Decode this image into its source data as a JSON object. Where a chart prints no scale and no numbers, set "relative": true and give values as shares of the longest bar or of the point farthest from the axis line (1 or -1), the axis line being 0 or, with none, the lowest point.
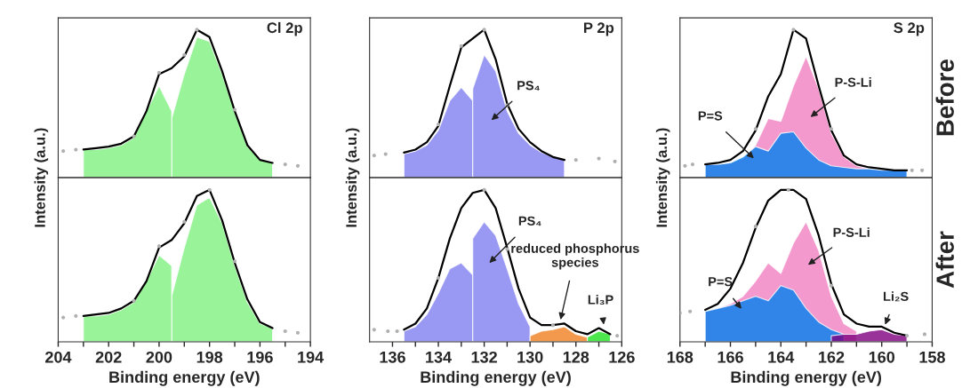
{
  "chart_data": [
    {
      "type": "area",
      "title": "Cl 2p",
      "relative": true,
      "tick_labels": false,
      "xlim": [
        204,
        194
      ],
      "series": [
        {
          "color": "#80f080",
          "x": [
            199.5,
            199,
            198.5,
            198,
            197.5,
            197,
            196.5,
            196,
            195.5
          ],
          "values": [
            0.4,
            0.7,
            0.95,
            0.92,
            0.7,
            0.44,
            0.21,
            0.12,
            0.1
          ]
        },
        {
          "color": "#80f080",
          "x": [
            203,
            202.5,
            202,
            201.5,
            201,
            200.5,
            200,
            199.5
          ],
          "values": [
            0.19,
            0.19,
            0.2,
            0.22,
            0.27,
            0.45,
            0.62,
            0.45
          ]
        },
        {
          "type": "line",
          "color": "#000000",
          "x": [
            203,
            202.5,
            202,
            201.5,
            201,
            200.5,
            200,
            199.5,
            199,
            198.5,
            198,
            197.5,
            197,
            196.5,
            196,
            195.5
          ],
          "values": [
            0.19,
            0.2,
            0.21,
            0.23,
            0.28,
            0.45,
            0.7,
            0.74,
            0.82,
            1.0,
            0.95,
            0.72,
            0.45,
            0.22,
            0.12,
            0.1
          ]
        },
        {
          "type": "scatter",
          "color": "#b0b0b0",
          "x": [
            203.8,
            203.3,
            201,
            200,
            199,
            198.5,
            197,
            195,
            194.5
          ],
          "values": [
            0.18,
            0.19,
            0.28,
            0.71,
            0.83,
            1.0,
            0.46,
            0.09,
            0.08
          ]
        }
      ]
    },
    {
      "type": "area",
      "title": "P 2p",
      "relative": true,
      "tick_labels": false,
      "xlim": [
        137,
        126
      ],
      "series": [
        {
          "color": "#8080f0",
          "x": [
            135.5,
            135,
            134.5,
            134,
            133.5,
            133,
            132.5
          ],
          "values": [
            0.16,
            0.18,
            0.22,
            0.32,
            0.52,
            0.61,
            0.52
          ]
        },
        {
          "color": "#8080f0",
          "x": [
            132.5,
            132,
            131.5,
            131,
            130.5,
            130,
            129.5,
            129,
            128.5
          ],
          "values": [
            0.6,
            0.83,
            0.72,
            0.45,
            0.3,
            0.22,
            0.17,
            0.14,
            0.12
          ]
        },
        {
          "type": "line",
          "color": "#000000",
          "x": [
            135.5,
            135,
            134.5,
            134,
            133.5,
            133,
            132.5,
            132,
            131.5,
            131,
            130.5,
            130,
            129.5,
            129,
            128.5
          ],
          "values": [
            0.17,
            0.19,
            0.24,
            0.35,
            0.62,
            0.88,
            0.94,
            1.0,
            0.8,
            0.5,
            0.33,
            0.24,
            0.18,
            0.14,
            0.12
          ]
        },
        {
          "type": "scatter",
          "color": "#b0b0b0",
          "x": [
            136.8,
            136.3,
            134,
            133,
            132,
            131,
            128,
            127,
            126.3
          ],
          "values": [
            0.15,
            0.16,
            0.36,
            0.89,
            1.0,
            0.49,
            0.12,
            0.13,
            0.11
          ]
        }
      ],
      "annotations": [
        "PS₄"
      ]
    },
    {
      "type": "area",
      "title": "S 2p",
      "relative": true,
      "tick_labels": false,
      "xlim": [
        168,
        158
      ],
      "series": [
        {
          "color": "#f080c0",
          "x": [
            167,
            166.5,
            166,
            165.5,
            165,
            164.5,
            164,
            163.5,
            163,
            162.5,
            162,
            161.5,
            161,
            160.5,
            160,
            159.5,
            159
          ],
          "values": [
            0.09,
            0.09,
            0.1,
            0.13,
            0.22,
            0.4,
            0.38,
            0.62,
            0.82,
            0.6,
            0.3,
            0.14,
            0.08,
            0.06,
            0.05,
            0.05,
            0.05
          ]
        },
        {
          "color": "#0080f0",
          "x": [
            167,
            166.5,
            166,
            165.5,
            165,
            164.5,
            164,
            163.5,
            163,
            162.5,
            162,
            161.5,
            161,
            160.5,
            160,
            159.5,
            159
          ],
          "values": [
            0.09,
            0.09,
            0.1,
            0.14,
            0.21,
            0.18,
            0.3,
            0.31,
            0.2,
            0.12,
            0.08,
            0.07,
            0.06,
            0.06,
            0.05,
            0.05,
            0.05
          ]
        },
        {
          "type": "line",
          "color": "#000000",
          "x": [
            167,
            166.5,
            166,
            165.5,
            165,
            164.5,
            164,
            163.5,
            163,
            162.5,
            162,
            161.5,
            161,
            160.5,
            160,
            159.5,
            159
          ],
          "values": [
            0.09,
            0.1,
            0.12,
            0.18,
            0.32,
            0.55,
            0.7,
            1.0,
            0.94,
            0.62,
            0.32,
            0.15,
            0.09,
            0.07,
            0.06,
            0.05,
            0.05
          ]
        },
        {
          "type": "scatter",
          "color": "#b0b0b0",
          "x": [
            167.8,
            167.5,
            165,
            163.5,
            162,
            158.8,
            158.4
          ],
          "values": [
            0.08,
            0.09,
            0.33,
            1.0,
            0.33,
            0.05,
            0.05
          ]
        }
      ],
      "annotations": [
        "P-S-Li",
        "P=S",
        "Before"
      ]
    },
    {
      "type": "area",
      "ylabel": "Intensity (a.u.)",
      "xlabel": "Binding energy (eV)",
      "relative": true,
      "tick_labels": "x",
      "xlim": [
        204,
        194
      ],
      "xticks": [
        204,
        {
          "value": 203,
          "label": null
        },
        202,
        {
          "value": 201,
          "label": null
        },
        200,
        {
          "value": 199,
          "label": null
        },
        198,
        {
          "value": 197,
          "label": null
        },
        196,
        {
          "value": 195,
          "label": null
        },
        194
      ],
      "series": [
        {
          "color": "#80f080",
          "x": [
            199.5,
            199,
            198.5,
            198,
            197.5,
            197,
            196.5,
            196,
            195.5
          ],
          "values": [
            0.3,
            0.62,
            0.9,
            0.95,
            0.78,
            0.5,
            0.26,
            0.12,
            0.09
          ]
        },
        {
          "color": "#80f080",
          "x": [
            203,
            202.5,
            202,
            201.5,
            201,
            200.5,
            200,
            199.5
          ],
          "values": [
            0.17,
            0.17,
            0.18,
            0.21,
            0.26,
            0.4,
            0.57,
            0.5
          ]
        },
        {
          "type": "line",
          "color": "#000000",
          "x": [
            203,
            202.5,
            202,
            201.5,
            201,
            200.5,
            200,
            199.5,
            199,
            198.5,
            198,
            197.5,
            197,
            196.5,
            196,
            195.5
          ],
          "values": [
            0.17,
            0.18,
            0.19,
            0.22,
            0.27,
            0.4,
            0.62,
            0.67,
            0.78,
            0.96,
            1.0,
            0.8,
            0.52,
            0.28,
            0.13,
            0.09
          ]
        },
        {
          "type": "scatter",
          "color": "#b0b0b0",
          "x": [
            203.8,
            203.3,
            201,
            200,
            199,
            198,
            197,
            195,
            194.5
          ],
          "values": [
            0.16,
            0.17,
            0.27,
            0.63,
            0.79,
            1.0,
            0.53,
            0.07,
            0.06
          ]
        }
      ]
    },
    {
      "type": "area",
      "ylabel": "Intensity (a.u.)",
      "xlabel": "Binding energy (eV)",
      "relative": true,
      "tick_labels": "x",
      "xlim": [
        137,
        126
      ],
      "xticks": [
        136,
        {
          "value": 135,
          "label": null
        },
        134,
        {
          "value": 133,
          "label": null
        },
        132,
        {
          "value": 131,
          "label": null
        },
        130,
        {
          "value": 129,
          "label": null
        },
        128,
        {
          "value": 127,
          "label": null
        },
        126
      ],
      "series": [
        {
          "color": "#8080f0",
          "x": [
            135.5,
            135,
            134.5,
            134,
            133.5,
            133,
            132.5
          ],
          "values": [
            0.07,
            0.1,
            0.18,
            0.32,
            0.48,
            0.52,
            0.44
          ]
        },
        {
          "color": "#8080f0",
          "x": [
            132.5,
            132,
            131.5,
            131,
            130.5,
            130
          ],
          "values": [
            0.68,
            0.79,
            0.7,
            0.48,
            0.25,
            0.1
          ]
        },
        {
          "color": "#f08020",
          "x": [
            130,
            129.5,
            129,
            128.5,
            128,
            127.5
          ],
          "values": [
            0.04,
            0.07,
            0.08,
            0.1,
            0.05,
            0.03
          ]
        },
        {
          "color": "#20e020",
          "x": [
            127.5,
            127,
            126.5
          ],
          "values": [
            0.03,
            0.07,
            0.05
          ]
        },
        {
          "type": "line",
          "color": "#000000",
          "x": [
            135.5,
            135,
            134.5,
            134,
            133.5,
            133,
            132.5,
            132,
            131.5,
            131,
            130.5,
            130,
            129.5,
            129,
            128.5,
            128,
            127.5,
            127,
            126.5
          ],
          "values": [
            0.08,
            0.12,
            0.22,
            0.42,
            0.68,
            0.88,
            0.98,
            1.0,
            0.88,
            0.62,
            0.35,
            0.16,
            0.11,
            0.11,
            0.12,
            0.07,
            0.05,
            0.09,
            0.05
          ]
        },
        {
          "type": "scatter",
          "color": "#b0b0b0",
          "x": [
            136.8,
            136.2,
            135.8,
            134,
            132,
            131,
            129,
            126.2
          ],
          "values": [
            0.08,
            0.07,
            0.07,
            0.42,
            1.0,
            0.61,
            0.11,
            0.04
          ]
        }
      ],
      "annotations": [
        "PS₄",
        "reduced phosphorus\nspecies",
        "Li₃P"
      ]
    },
    {
      "type": "area",
      "ylabel": "Intensity (a.u.)",
      "xlabel": "Binding energy (eV)",
      "relative": true,
      "tick_labels": "x",
      "xlim": [
        168,
        158
      ],
      "xticks": [
        168,
        {
          "value": 167,
          "label": null
        },
        166,
        {
          "value": 165,
          "label": null
        },
        164,
        {
          "value": 163,
          "label": null
        },
        162,
        {
          "value": 161,
          "label": null
        },
        160,
        {
          "value": 159,
          "label": null
        },
        158
      ],
      "series": [
        {
          "color": "#f080c0",
          "x": [
            167,
            166.5,
            166,
            165.5,
            165,
            164.5,
            164,
            163.5,
            163,
            162.5,
            162,
            161.5,
            161
          ],
          "values": [
            0.2,
            0.22,
            0.25,
            0.3,
            0.4,
            0.52,
            0.45,
            0.65,
            0.79,
            0.6,
            0.3,
            0.12,
            0.07
          ]
        },
        {
          "color": "#0080f0",
          "x": [
            167,
            166.5,
            166,
            165.5,
            165,
            164.5,
            164,
            163.5,
            163,
            162.5,
            162,
            161.5
          ],
          "values": [
            0.2,
            0.22,
            0.24,
            0.27,
            0.3,
            0.27,
            0.37,
            0.34,
            0.22,
            0.13,
            0.08,
            0.05
          ]
        },
        {
          "color": "#800080",
          "x": [
            162,
            161.5,
            161,
            160.5,
            160,
            159.5,
            159
          ],
          "values": [
            0.04,
            0.05,
            0.05,
            0.07,
            0.08,
            0.05,
            0.04
          ]
        },
        {
          "type": "line",
          "color": "#000000",
          "x": [
            167,
            166.5,
            166,
            165.5,
            165,
            164.5,
            164,
            163.5,
            163,
            162.5,
            162,
            161.5,
            161,
            160.5,
            160,
            159.5,
            159
          ],
          "values": [
            0.21,
            0.25,
            0.35,
            0.52,
            0.75,
            0.93,
            1.0,
            1.0,
            0.94,
            0.7,
            0.38,
            0.18,
            0.12,
            0.1,
            0.1,
            0.06,
            0.04
          ]
        },
        {
          "type": "scatter",
          "color": "#b0b0b0",
          "x": [
            168,
            167.6,
            165,
            163.7,
            162,
            159,
            158.3
          ],
          "values": [
            0.19,
            0.2,
            0.76,
            1.0,
            0.37,
            0.04,
            0.05
          ]
        }
      ],
      "annotations": [
        "P-S-Li",
        "P=S",
        "Li₂S",
        "After"
      ]
    }
  ]
}
